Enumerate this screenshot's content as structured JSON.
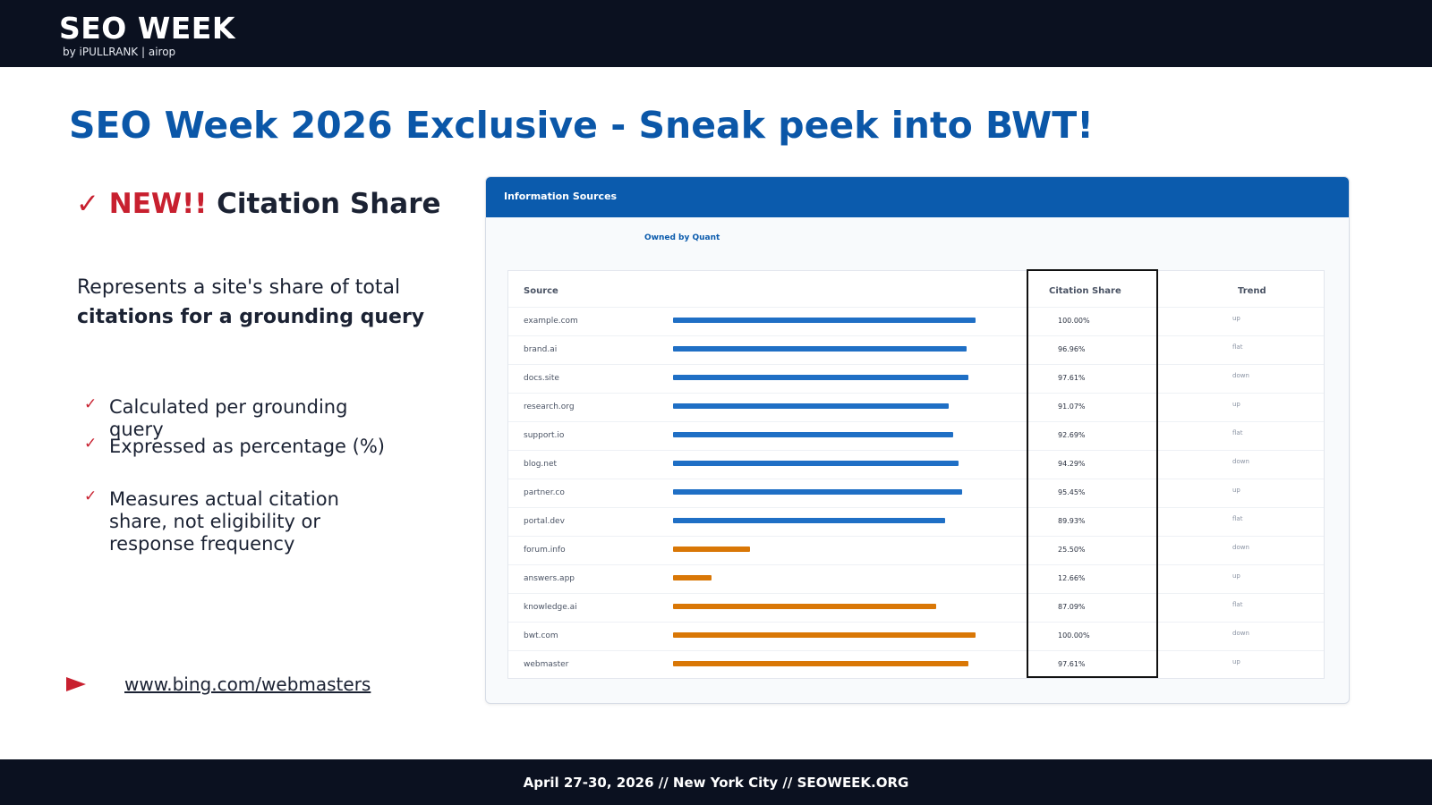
{
  "header": {
    "logo_main": "SEO WEEK",
    "logo_sub": "by  iPULLRANK  |  airop"
  },
  "slide": {
    "title": "SEO Week 2026 Exclusive - Sneak peek into BWT!",
    "feature": {
      "check": "✓",
      "new_label": "NEW!!",
      "name": "Citation Share"
    },
    "description": {
      "line1": "Represents a site's share of total",
      "line2": "citations for a grounding query"
    },
    "bullets": [
      {
        "tick": "✓",
        "text": "Calculated per grounding query"
      },
      {
        "tick": "✓",
        "text": "Expressed as percentage (%)"
      },
      {
        "tick": "✓",
        "text": "Measures actual citation share, not eligibility or response frequency"
      }
    ],
    "link": "www.bing.com/webmasters"
  },
  "panel": {
    "title": "Information Sources",
    "owned_label": "Owned by Quant",
    "columns": {
      "source": "Source",
      "share": "Citation Share",
      "trend": "Trend"
    },
    "colors": {
      "owned": "#1f6fc5",
      "other": "#d97706"
    },
    "rows": [
      {
        "source": "example.com",
        "share": "100.00%",
        "value": 100.0,
        "trend": "up",
        "group": "owned"
      },
      {
        "source": "brand.ai",
        "share": "96.96%",
        "value": 96.96,
        "trend": "flat",
        "group": "owned"
      },
      {
        "source": "docs.site",
        "share": "97.61%",
        "value": 97.61,
        "trend": "down",
        "group": "owned"
      },
      {
        "source": "research.org",
        "share": "91.07%",
        "value": 91.07,
        "trend": "up",
        "group": "owned"
      },
      {
        "source": "support.io",
        "share": "92.69%",
        "value": 92.69,
        "trend": "flat",
        "group": "owned"
      },
      {
        "source": "blog.net",
        "share": "94.29%",
        "value": 94.29,
        "trend": "down",
        "group": "owned"
      },
      {
        "source": "partner.co",
        "share": "95.45%",
        "value": 95.45,
        "trend": "up",
        "group": "owned"
      },
      {
        "source": "portal.dev",
        "share": "89.93%",
        "value": 89.93,
        "trend": "flat",
        "group": "owned"
      },
      {
        "source": "forum.info",
        "share": "25.50%",
        "value": 25.5,
        "trend": "down",
        "group": "other"
      },
      {
        "source": "answers.app",
        "share": "12.66%",
        "value": 12.66,
        "trend": "up",
        "group": "other"
      },
      {
        "source": "knowledge.ai",
        "share": "87.09%",
        "value": 87.09,
        "trend": "flat",
        "group": "other"
      },
      {
        "source": "bwt.com",
        "share": "100.00%",
        "value": 100.0,
        "trend": "down",
        "group": "other"
      },
      {
        "source": "webmaster",
        "share": "97.61%",
        "value": 97.61,
        "trend": "up",
        "group": "other"
      }
    ]
  },
  "footer": {
    "text": "April 27-30, 2026  //  New York City  //  SEOWEEK.ORG"
  }
}
